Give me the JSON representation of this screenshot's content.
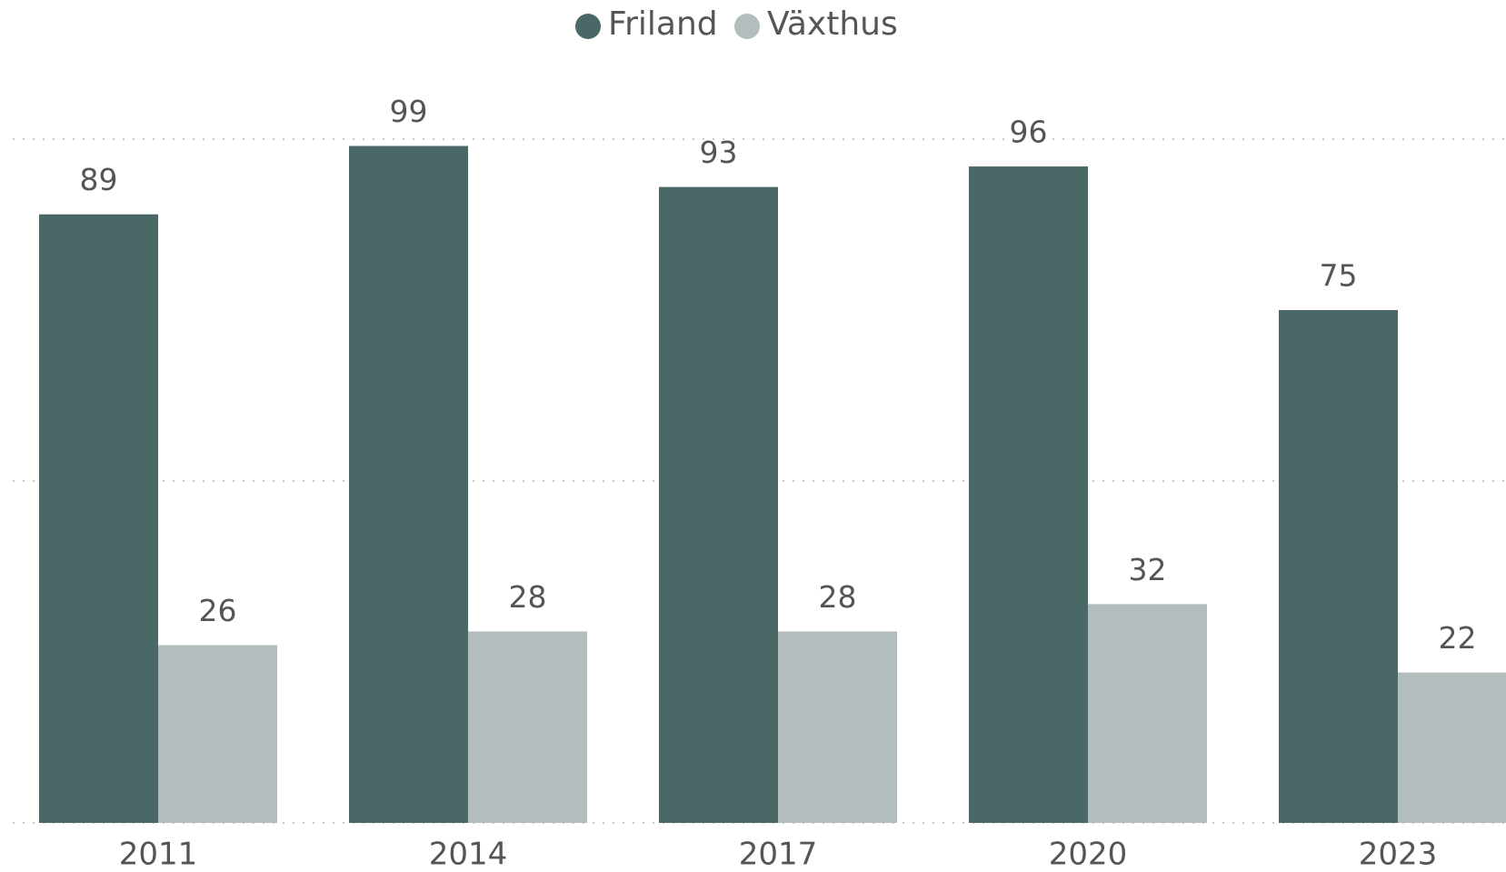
{
  "chart_data": {
    "type": "bar",
    "categories": [
      "2011",
      "2014",
      "2017",
      "2020",
      "2023"
    ],
    "series": [
      {
        "name": "Friland",
        "color": "#4a6866",
        "values": [
          89,
          99,
          93,
          96,
          75
        ]
      },
      {
        "name": "Växthus",
        "color": "#b3bdbd",
        "values": [
          26,
          28,
          28,
          32,
          22
        ]
      }
    ],
    "ylim": [
      0,
      100
    ],
    "yticks": [
      0,
      50,
      100
    ],
    "grid": true,
    "legend": "top"
  }
}
